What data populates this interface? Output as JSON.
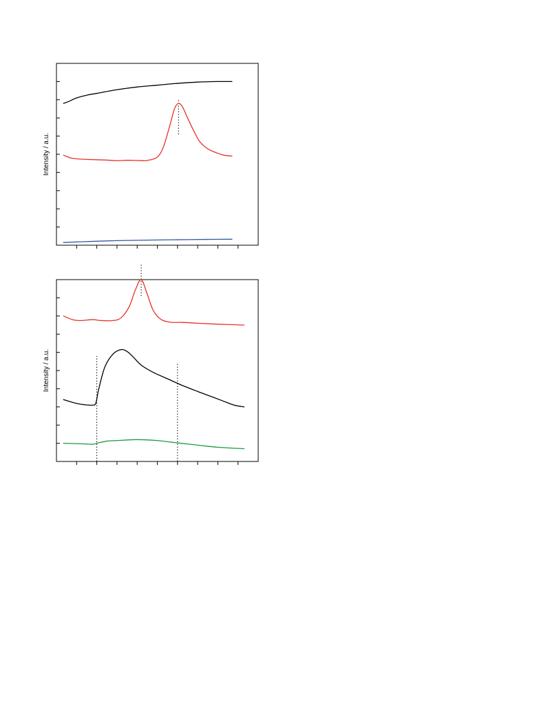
{
  "chart_data": [
    {
      "type": "line",
      "title": "",
      "xlabel": "",
      "ylabel": "Intensity / a.u.",
      "xlim": [
        0,
        10
      ],
      "ylim": [
        0,
        10
      ],
      "x_ticks": [
        1,
        2,
        3,
        4,
        5,
        6,
        7,
        8,
        9
      ],
      "y_ticks": [
        1,
        2,
        3,
        4,
        5,
        6,
        7,
        8,
        9
      ],
      "grid": false,
      "legend": "none",
      "series": [
        {
          "color": "#000000",
          "style": "smooth",
          "x": [
            0.35,
            0.6,
            1.0,
            1.5,
            2.0,
            3.0,
            4.0,
            5.0,
            6.0,
            7.0,
            8.0,
            8.7
          ],
          "y": [
            7.8,
            7.9,
            8.1,
            8.25,
            8.35,
            8.55,
            8.7,
            8.8,
            8.9,
            8.97,
            9.0,
            9.0
          ]
        },
        {
          "color": "#e8302a",
          "style": "smooth",
          "x": [
            0.35,
            0.7,
            1.0,
            1.5,
            2.0,
            2.5,
            3.0,
            3.5,
            4.0,
            4.5,
            5.0,
            5.3,
            5.6,
            5.85,
            6.05,
            6.25,
            6.5,
            6.8,
            7.1,
            7.5,
            8.0,
            8.3,
            8.7
          ],
          "y": [
            4.95,
            4.8,
            4.75,
            4.72,
            4.7,
            4.68,
            4.65,
            4.67,
            4.66,
            4.66,
            4.85,
            5.4,
            6.5,
            7.5,
            7.8,
            7.6,
            7.0,
            6.3,
            5.7,
            5.3,
            5.05,
            4.95,
            4.9
          ]
        },
        {
          "color": "#2f57a5",
          "style": "smooth",
          "x": [
            0.35,
            1.5,
            3.0,
            4.5,
            6.0,
            7.5,
            8.7
          ],
          "y": [
            0.15,
            0.2,
            0.25,
            0.28,
            0.3,
            0.32,
            0.33
          ]
        }
      ],
      "reference_lines": [
        {
          "x": 6.05,
          "y_from": 6.1,
          "y_to": 8.0
        }
      ]
    },
    {
      "type": "line",
      "title": "",
      "xlabel": "",
      "ylabel": "Intensity / a.u.",
      "xlim": [
        0,
        10
      ],
      "ylim": [
        0,
        10
      ],
      "x_ticks": [
        1,
        2,
        3,
        4,
        5,
        6,
        7,
        8,
        9
      ],
      "y_ticks": [
        1,
        2,
        3,
        4,
        5,
        6,
        7,
        8,
        9
      ],
      "grid": false,
      "legend": "none",
      "series": [
        {
          "color": "#e8302a",
          "style": "smooth",
          "x": [
            0.35,
            0.8,
            1.2,
            1.8,
            2.2,
            2.8,
            3.2,
            3.6,
            3.9,
            4.2,
            4.5,
            4.8,
            5.2,
            5.7,
            6.2,
            7.0,
            8.0,
            9.3
          ],
          "y": [
            8.0,
            7.8,
            7.75,
            7.8,
            7.75,
            7.75,
            7.9,
            8.5,
            9.4,
            10.0,
            9.2,
            8.3,
            7.8,
            7.65,
            7.65,
            7.6,
            7.55,
            7.5
          ]
        },
        {
          "color": "#000000",
          "style": "smooth",
          "x": [
            0.35,
            0.8,
            1.2,
            1.6,
            1.8,
            1.95,
            2.1,
            2.4,
            2.8,
            3.2,
            3.5,
            3.8,
            4.2,
            4.8,
            5.5,
            6.2,
            7.0,
            7.6,
            8.2,
            8.8,
            9.3
          ],
          "y": [
            3.4,
            3.25,
            3.15,
            3.1,
            3.1,
            3.2,
            4.0,
            5.2,
            5.9,
            6.15,
            6.05,
            5.75,
            5.3,
            4.9,
            4.55,
            4.2,
            3.85,
            3.6,
            3.35,
            3.1,
            3.0
          ]
        },
        {
          "color": "#1a9a3f",
          "style": "smooth",
          "x": [
            0.35,
            1.0,
            1.8,
            2.0,
            2.5,
            3.0,
            4.0,
            5.0,
            6.0,
            7.0,
            8.0,
            9.3
          ],
          "y": [
            1.0,
            0.98,
            0.95,
            1.0,
            1.12,
            1.15,
            1.2,
            1.15,
            1.02,
            0.9,
            0.78,
            0.7
          ]
        }
      ],
      "reference_lines": [
        {
          "x": 4.2,
          "y_from": 9.1,
          "y_to": 10.9
        },
        {
          "x": 2.0,
          "y_from": 0.0,
          "y_to": 5.8
        },
        {
          "x": 6.0,
          "y_from": 0.0,
          "y_to": 5.4
        }
      ]
    }
  ]
}
